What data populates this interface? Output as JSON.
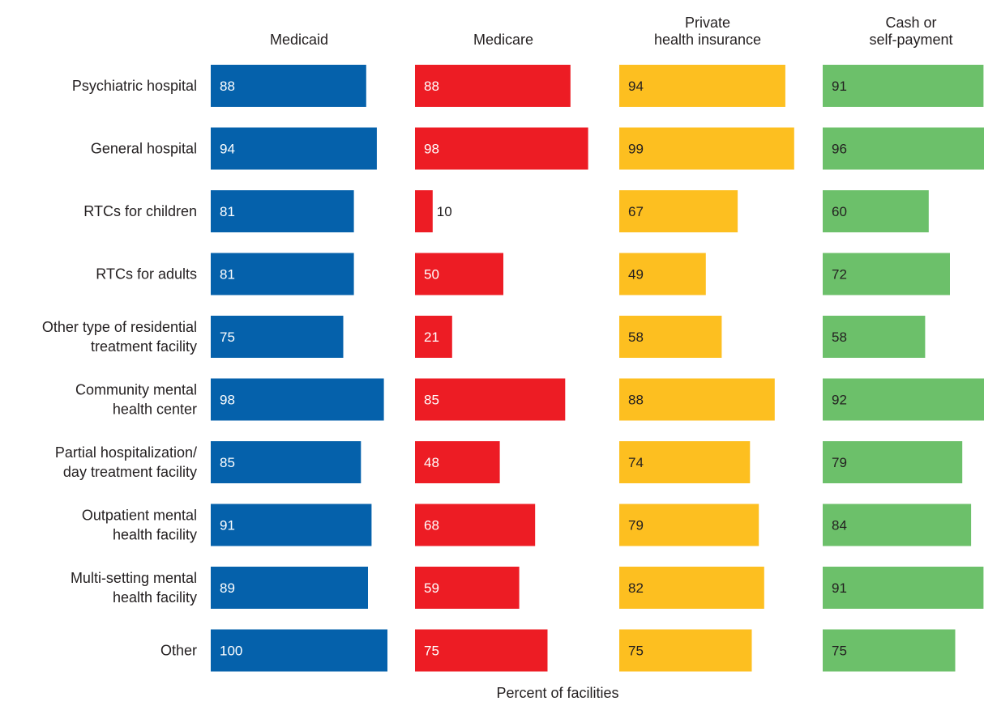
{
  "chart_data": {
    "type": "bar",
    "orientation": "horizontal",
    "layout": "small-multiples",
    "xlabel": "Percent of facilities",
    "xlim": [
      0,
      100
    ],
    "grid": false,
    "legend": "none",
    "categories": [
      [
        "Psychiatric hospital"
      ],
      [
        "General hospital"
      ],
      [
        "RTCs for children"
      ],
      [
        "RTCs for adults"
      ],
      [
        "Other type of residential",
        "treatment facility"
      ],
      [
        "Community mental",
        "health center"
      ],
      [
        "Partial hospitalization/",
        "day treatment facility"
      ],
      [
        "Outpatient mental",
        "health facility"
      ],
      [
        "Multi-setting mental",
        "health facility"
      ],
      [
        "Other"
      ]
    ],
    "series": [
      {
        "name": [
          "Medicaid"
        ],
        "color": "#0561ab",
        "values": [
          88,
          94,
          81,
          81,
          75,
          98,
          85,
          91,
          89,
          100
        ]
      },
      {
        "name": [
          "Medicare"
        ],
        "color": "#ed1c24",
        "values": [
          88,
          98,
          10,
          50,
          21,
          85,
          48,
          68,
          59,
          75
        ]
      },
      {
        "name": [
          "Private",
          "health insurance"
        ],
        "color": "#fdbf20",
        "values": [
          94,
          99,
          67,
          49,
          58,
          88,
          74,
          79,
          82,
          75
        ]
      },
      {
        "name": [
          "Cash or",
          "self-payment"
        ],
        "color": "#6cc06a",
        "values": [
          91,
          96,
          60,
          72,
          58,
          92,
          79,
          84,
          91,
          75
        ]
      }
    ]
  }
}
